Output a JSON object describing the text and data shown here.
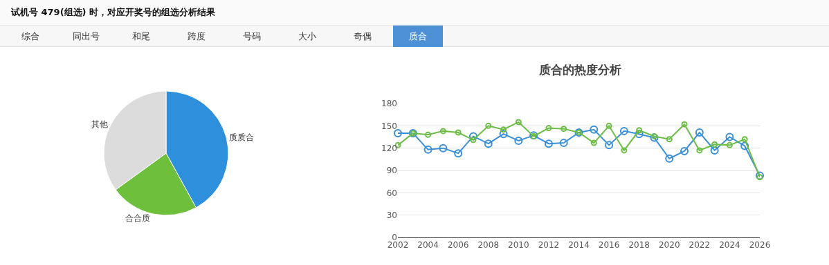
{
  "chart_data": [
    {
      "type": "pie",
      "categories": [
        "质质合",
        "合合质",
        "其他"
      ],
      "values": [
        42,
        23,
        35
      ],
      "colors": [
        "#2e90dc",
        "#6dbf3c",
        "#dcdcdc"
      ],
      "annotations": [
        "试机号 479(组选) 时，对应开奖号的组选分析结果",
        "综合",
        "同出号",
        "和尾",
        "跨度",
        "号码",
        "大小",
        "奇偶",
        "质合"
      ]
    },
    {
      "type": "line",
      "title": "质合的热度分析",
      "marker": "circle",
      "grid": "y",
      "x": [
        2002,
        2003,
        2004,
        2005,
        2006,
        2007,
        2008,
        2009,
        2010,
        2011,
        2012,
        2013,
        2014,
        2015,
        2016,
        2017,
        2018,
        2019,
        2020,
        2021,
        2022,
        2023,
        2024,
        2025,
        2026
      ],
      "xlim": [
        2002,
        2026
      ],
      "xticks": [
        2002,
        2004,
        2006,
        2008,
        2010,
        2012,
        2014,
        2016,
        2018,
        2020,
        2022,
        2024,
        2026
      ],
      "ylim": [
        0,
        180
      ],
      "yticks": [
        0,
        30,
        60,
        90,
        120,
        150,
        180
      ],
      "series": [
        {
          "color": "#3a8fd8",
          "values": [
            140,
            140,
            118,
            120,
            113,
            136,
            126,
            139,
            130,
            137,
            126,
            127,
            141,
            145,
            124,
            143,
            139,
            134,
            106,
            116,
            141,
            117,
            135,
            123,
            83
          ]
        },
        {
          "color": "#6cbd45",
          "values": [
            124,
            140,
            138,
            143,
            141,
            131,
            150,
            145,
            155,
            136,
            147,
            146,
            141,
            127,
            150,
            117,
            144,
            136,
            132,
            152,
            117,
            125,
            124,
            132,
            81
          ]
        }
      ]
    }
  ]
}
